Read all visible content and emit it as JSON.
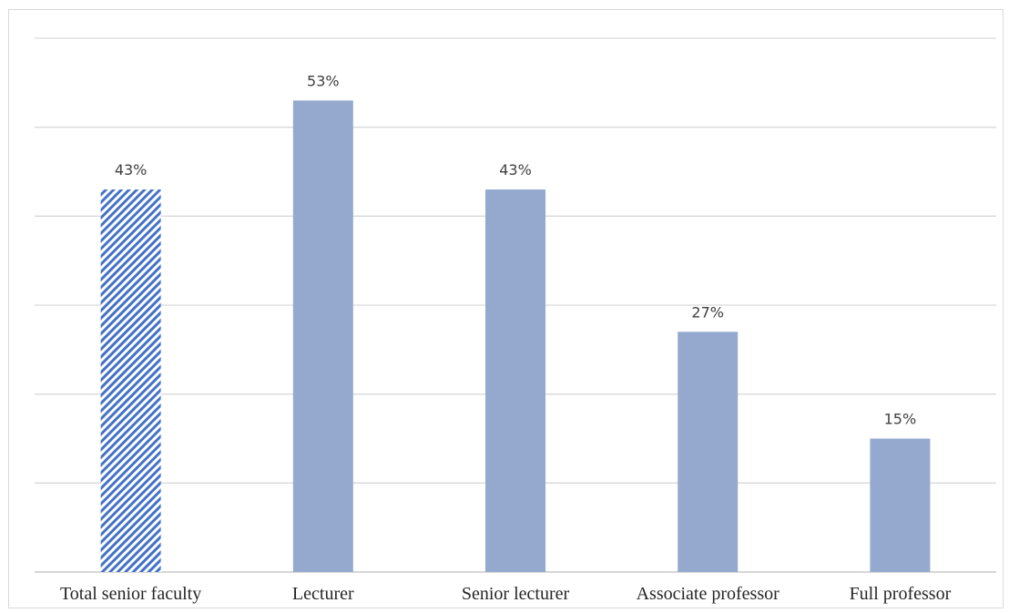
{
  "chart_data": {
    "type": "bar",
    "categories": [
      "Total senior faculty",
      "Lecturer",
      "Senior lecturer",
      "Associate professor",
      "Full professor"
    ],
    "values": [
      43,
      53,
      43,
      27,
      15
    ],
    "data_labels": [
      "43%",
      "53%",
      "43%",
      "27%",
      "15%"
    ],
    "bar_styles": [
      "hatched",
      "solid",
      "solid",
      "solid",
      "solid"
    ],
    "ylim": [
      0,
      60
    ],
    "y_gridline_step": 10,
    "grid": true,
    "legend": "none",
    "colors": {
      "bar": "#95a9cf",
      "hatch": "#4472c4",
      "grid": "#d9d9d9"
    }
  }
}
